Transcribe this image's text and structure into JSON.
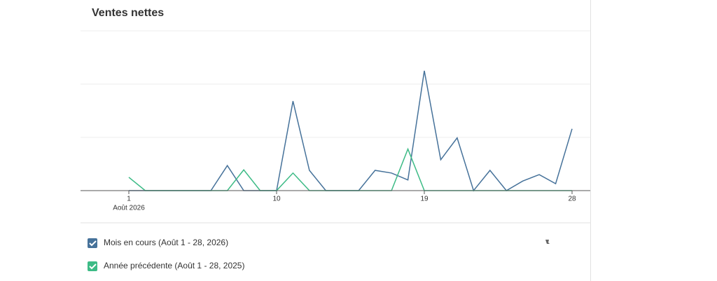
{
  "chart_data": {
    "type": "line",
    "title": "Ventes nettes",
    "x": [
      1,
      2,
      3,
      4,
      5,
      6,
      7,
      8,
      9,
      10,
      11,
      12,
      13,
      14,
      15,
      16,
      17,
      18,
      19,
      20,
      21,
      22,
      23,
      24,
      25,
      26,
      27,
      28
    ],
    "xlim": [
      1,
      28
    ],
    "xticks": [
      1,
      10,
      19,
      28
    ],
    "x_sublabel": "Août 2026",
    "ylim": [
      0,
      3
    ],
    "series": [
      {
        "name": "Mois en cours (Août 1 - 28, 2026)",
        "color": "#46729a",
        "values": [
          0,
          0,
          0,
          0,
          0,
          0,
          0.47,
          0,
          0,
          0,
          1.68,
          0.38,
          0,
          0,
          0,
          0.38,
          0.33,
          0.2,
          2.25,
          0.58,
          0.99,
          0,
          0.38,
          0,
          0.18,
          0.3,
          0.13,
          1.16
        ]
      },
      {
        "name": "Année précédente (Août 1 - 28, 2025)",
        "color": "#3dbb86",
        "values": [
          0.25,
          0,
          0,
          0,
          0,
          0,
          0,
          0.39,
          0,
          0,
          0.33,
          0,
          0,
          0,
          0,
          0,
          0,
          0.78,
          0,
          0,
          0,
          0,
          0,
          0,
          0,
          0,
          0,
          0
        ]
      }
    ]
  }
}
